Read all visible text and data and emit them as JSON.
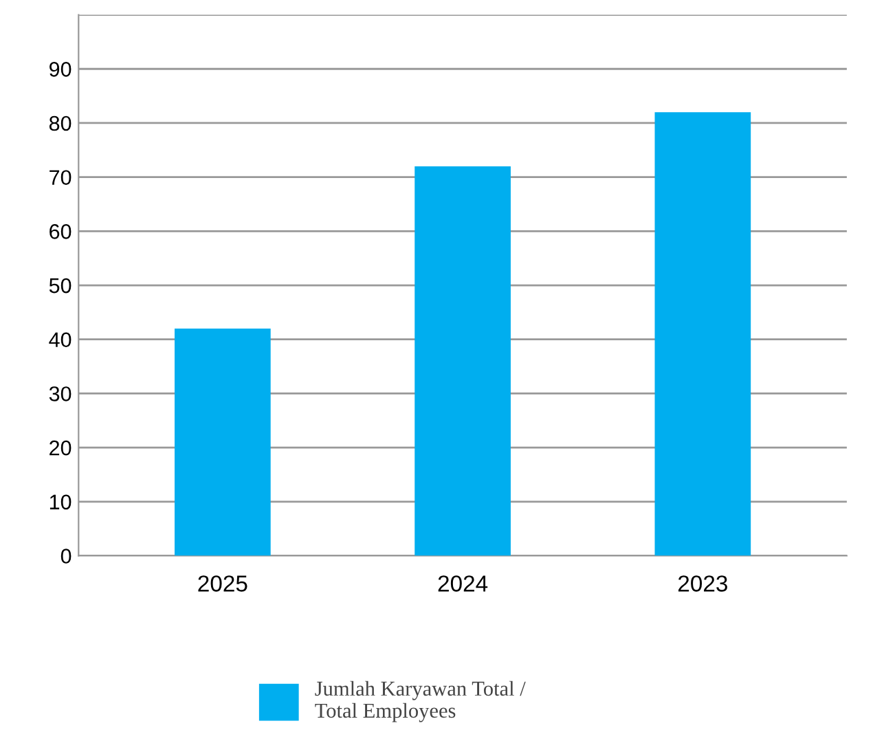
{
  "chart_data": {
    "type": "bar",
    "categories": [
      "2025",
      "2024",
      "2023"
    ],
    "series": [
      {
        "name": "Jumlah Karyawan Total /\nTotal Employees",
        "color": "#00aeef",
        "values": [
          42,
          72,
          82
        ]
      }
    ],
    "ylim": [
      0,
      100
    ],
    "yticks": [
      0,
      10,
      20,
      30,
      40,
      50,
      60,
      70,
      80,
      90,
      {
        "value": 100,
        "label": null
      }
    ],
    "grid": "y",
    "legend": "bottom"
  }
}
